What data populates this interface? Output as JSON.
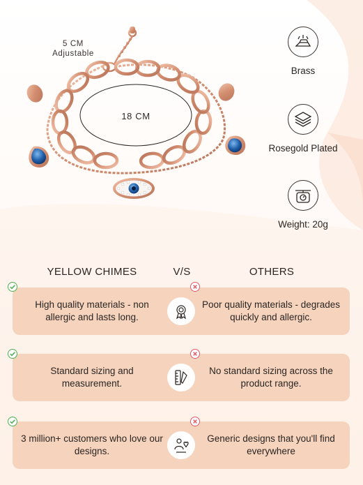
{
  "product": {
    "size_label_line1": "5 CM",
    "size_label_line2": "Adjustable",
    "length_label": "18 CM"
  },
  "features": [
    {
      "label": "Brass",
      "icon": "brass-bars-icon"
    },
    {
      "label": "Rosegold Plated",
      "icon": "plated-layers-icon"
    },
    {
      "label": "Weight: 20g",
      "icon": "weighing-scale-icon"
    }
  ],
  "comparison": {
    "left_header": "YELLOW CHIMES",
    "mid_header": "V/S",
    "right_header": "OTHERS",
    "rows": [
      {
        "left": "High quality materials - non allergic and lasts long.",
        "right": "Poor quality materials - degrades quickly and allergic.",
        "icon": "quality-badge-icon"
      },
      {
        "left": "Standard sizing and measurement.",
        "right": "No standard sizing across the product range.",
        "icon": "ruler-icon"
      },
      {
        "left": "3 million+ customers who love our designs.",
        "right": "Generic designs that you'll find everywhere",
        "icon": "customers-heart-icon"
      }
    ]
  },
  "colors": {
    "rose_gold": "#d99a7e",
    "card_bg": "#f6d3bd",
    "check_green": "#4caf50",
    "cross_red": "#e05a6a",
    "stone_blue": "#1f5fa8"
  }
}
